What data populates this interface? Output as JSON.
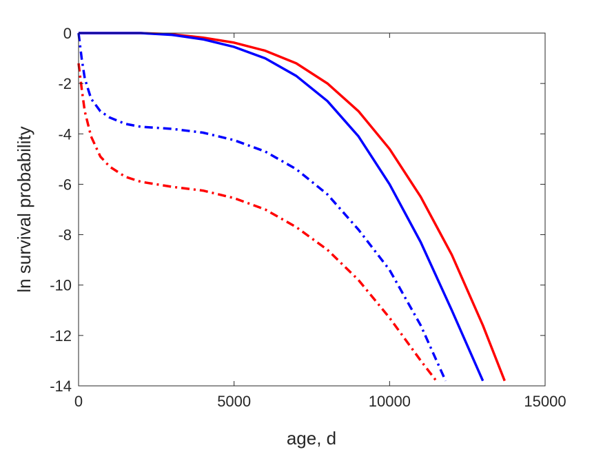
{
  "chart_data": {
    "type": "line",
    "xlabel": "age, d",
    "ylabel": "ln survival probability",
    "xlim": [
      0,
      15000
    ],
    "ylim": [
      -14,
      0
    ],
    "xticks": [
      0,
      5000,
      10000,
      15000
    ],
    "yticks": [
      0,
      -2,
      -4,
      -6,
      -8,
      -10,
      -12,
      -14
    ],
    "xtick_labels": [
      "0",
      "5000",
      "10000",
      "15000"
    ],
    "ytick_labels": [
      "0",
      "-2",
      "-4",
      "-6",
      "-8",
      "-10",
      "-12",
      "-14"
    ],
    "grid": false,
    "series": [
      {
        "color": "#ff0000",
        "style": "solid",
        "x": [
          0,
          1000,
          2000,
          3000,
          4000,
          5000,
          6000,
          7000,
          8000,
          9000,
          10000,
          11000,
          12000,
          13000,
          13700
        ],
        "y": [
          0,
          0,
          0,
          -0.05,
          -0.18,
          -0.38,
          -0.7,
          -1.2,
          -2.0,
          -3.1,
          -4.6,
          -6.5,
          -8.8,
          -11.6,
          -13.8
        ]
      },
      {
        "color": "#0000ff",
        "style": "solid",
        "x": [
          0,
          1000,
          2000,
          3000,
          4000,
          5000,
          6000,
          7000,
          8000,
          9000,
          10000,
          11000,
          12000,
          13000
        ],
        "y": [
          0,
          0,
          0,
          -0.07,
          -0.25,
          -0.55,
          -1.0,
          -1.7,
          -2.7,
          -4.1,
          -6.0,
          -8.3,
          -11.0,
          -13.8
        ]
      },
      {
        "color": "#0000ff",
        "style": "dashdot",
        "x": [
          0,
          100,
          200,
          400,
          700,
          1000,
          1500,
          2000,
          3000,
          4000,
          5000,
          6000,
          7000,
          8000,
          9000,
          10000,
          11000,
          11800
        ],
        "y": [
          0,
          -1.0,
          -1.8,
          -2.6,
          -3.1,
          -3.35,
          -3.6,
          -3.72,
          -3.8,
          -3.95,
          -4.25,
          -4.7,
          -5.4,
          -6.4,
          -7.8,
          -9.4,
          -11.6,
          -13.8
        ]
      },
      {
        "color": "#ff0000",
        "style": "dashdot",
        "x": [
          0,
          100,
          200,
          400,
          700,
          1000,
          1500,
          2000,
          3000,
          4000,
          5000,
          6000,
          7000,
          8000,
          9000,
          10000,
          11000,
          11500
        ],
        "y": [
          -1.2,
          -2.2,
          -3.1,
          -4.1,
          -4.9,
          -5.3,
          -5.7,
          -5.9,
          -6.1,
          -6.25,
          -6.55,
          -7.0,
          -7.7,
          -8.6,
          -9.8,
          -11.3,
          -13.0,
          -13.8
        ]
      }
    ]
  }
}
